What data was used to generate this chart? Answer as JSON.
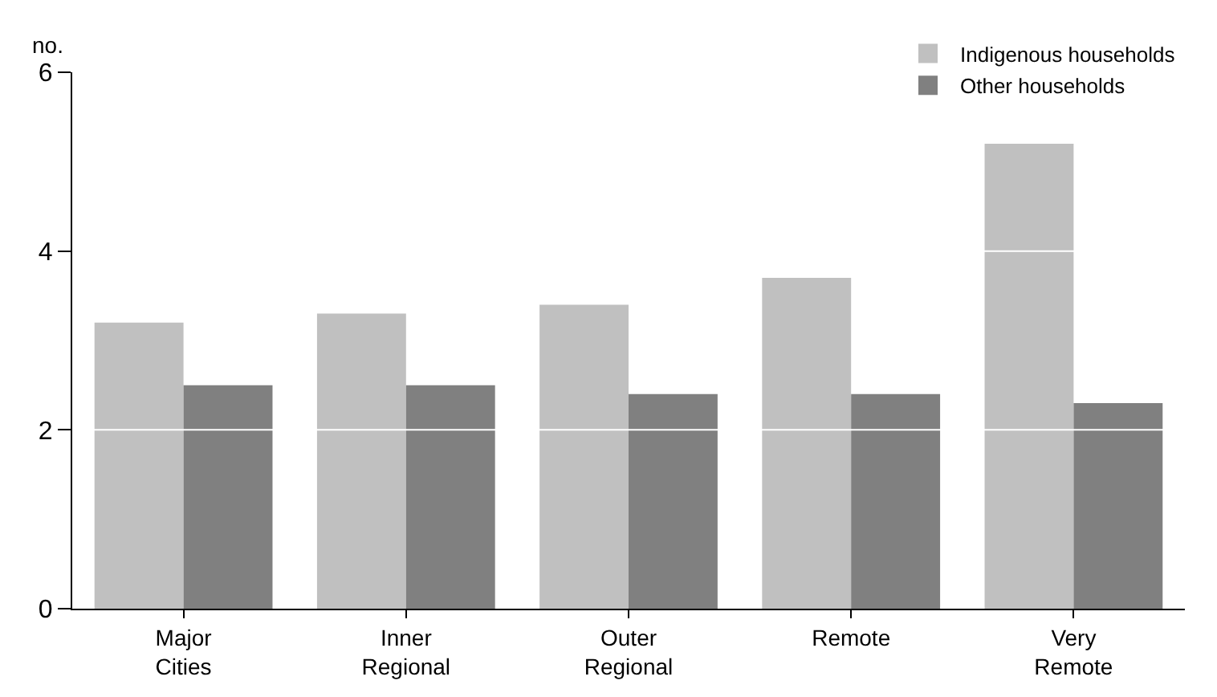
{
  "chart_data": {
    "type": "bar",
    "ylabel": "no.",
    "categories": [
      "Major Cities",
      "Inner Regional",
      "Outer Regional",
      "Remote",
      "Very Remote"
    ],
    "series": [
      {
        "name": "Indigenous households",
        "color": "#c0c0c0",
        "values": [
          3.2,
          3.3,
          3.4,
          3.7,
          5.2
        ]
      },
      {
        "name": "Other households",
        "color": "#808080",
        "values": [
          2.5,
          2.5,
          2.4,
          2.4,
          2.3
        ]
      }
    ],
    "ylim": [
      0,
      6
    ],
    "yticks": [
      0,
      2,
      4,
      6
    ],
    "grid": "y",
    "legend": "top right"
  }
}
